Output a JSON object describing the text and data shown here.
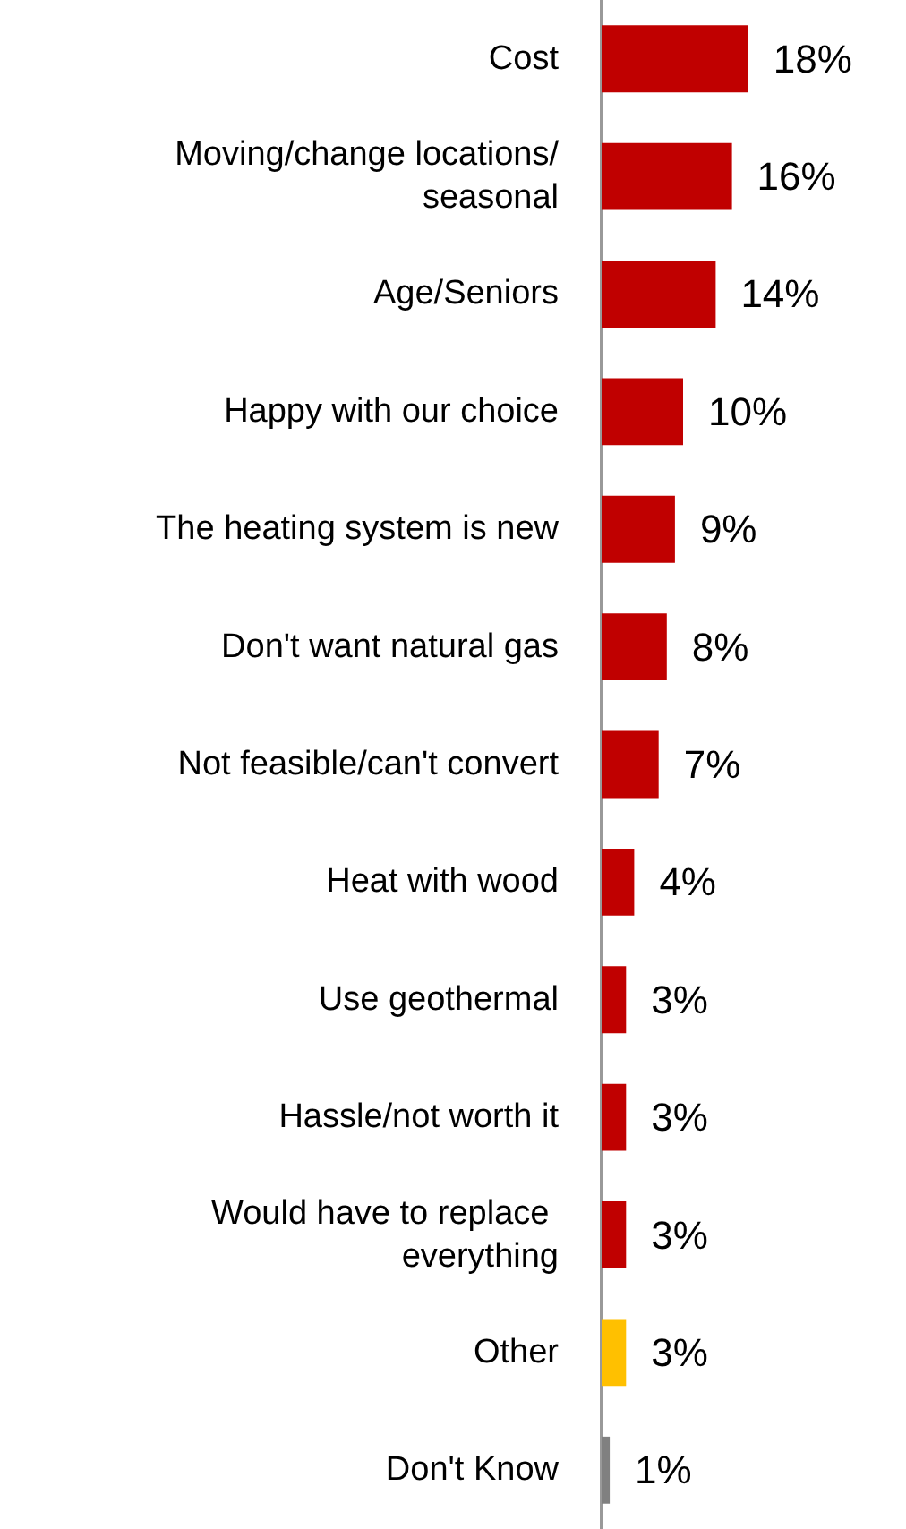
{
  "chart_data": {
    "type": "bar",
    "orientation": "horizontal",
    "categories": [
      "Cost",
      "Moving/change locations/seasonal",
      "Age/Seniors",
      "Happy with our choice",
      "The heating system is new",
      "Don't want natural gas",
      "Not feasible/can't convert",
      "Heat with wood",
      "Use geothermal",
      "Hassle/not worth it",
      "Would have to replace everything",
      "Other",
      "Don't Know"
    ],
    "values": [
      18,
      16,
      14,
      10,
      9,
      8,
      7,
      4,
      3,
      3,
      3,
      3,
      1
    ],
    "colors": [
      "#c00000",
      "#c00000",
      "#c00000",
      "#c00000",
      "#c00000",
      "#c00000",
      "#c00000",
      "#c00000",
      "#c00000",
      "#c00000",
      "#c00000",
      "#ffc000",
      "#808080"
    ],
    "value_labels": [
      "18%",
      "16%",
      "14%",
      "10%",
      "9%",
      "8%",
      "7%",
      "4%",
      "3%",
      "3%",
      "3%",
      "3%",
      "1%"
    ],
    "grid": false
  }
}
